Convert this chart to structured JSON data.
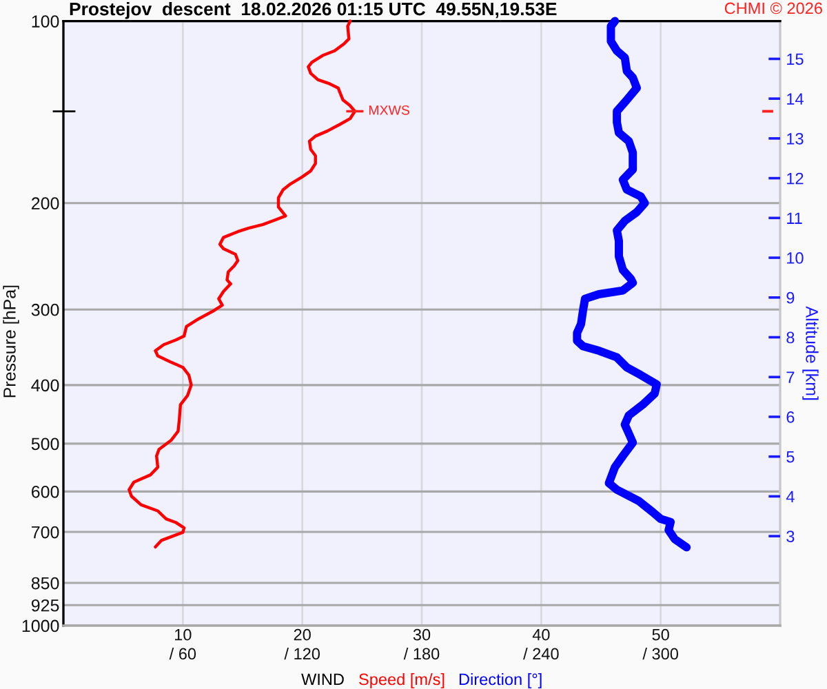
{
  "chart_data": {
    "type": "line",
    "orientation": "horizontal",
    "title": "Prostejov  descent  18.02.2026 01:15 UTC  49.55N,19.53E",
    "xlabel": "WIND",
    "ylabel": "Pressure [hPa]",
    "y2label": "Altitude [km]",
    "annotations": [
      {
        "text": "MXWS",
        "x": 24.4,
        "y": 141
      },
      "CHMI © 2026"
    ],
    "log": "y",
    "grid": true,
    "xlim": [
      0,
      60
    ],
    "xticks": [
      10,
      20,
      30,
      40,
      50
    ],
    "x2lim": [
      0,
      360
    ],
    "x2ticks": [
      {
        "value": 60,
        "label": "/ 60"
      },
      {
        "value": 120,
        "label": "/ 120"
      },
      {
        "value": 180,
        "label": "/ 180"
      },
      {
        "value": 240,
        "label": "/ 240"
      },
      {
        "value": 300,
        "label": "/ 300"
      }
    ],
    "ylim": [
      1000,
      100
    ],
    "yticks": [
      100,
      200,
      300,
      400,
      500,
      600,
      700,
      850,
      925,
      1000
    ],
    "y2lim": [
      0.75,
      15.95
    ],
    "y2ticks": [
      3,
      4,
      5,
      6,
      7,
      8,
      9,
      10,
      11,
      12,
      13,
      14,
      15
    ],
    "series": [
      {
        "name": "Speed [m/s]",
        "color": "#ff0000",
        "x": [
          100,
          102,
          107,
          109,
          112,
          114,
          117,
          119,
          122,
          125,
          127,
          129,
          135,
          138,
          141,
          145,
          148,
          152,
          155,
          158,
          163,
          167,
          172,
          177,
          181,
          186,
          190,
          196,
          203,
          210,
          213,
          217,
          220,
          223,
          228,
          234,
          238,
          243,
          249,
          254,
          260,
          268,
          272,
          280,
          288,
          295,
          302,
          311,
          320,
          332,
          337,
          343,
          351,
          358,
          365,
          374,
          385,
          400,
          416,
          431,
          457,
          477,
          494,
          511,
          524,
          547,
          563,
          579,
          596,
          611,
          631,
          646,
          666,
          675,
          689,
          701,
          713,
          723,
          741
        ],
        "values": [
          24.0,
          23.8,
          23.9,
          23.5,
          22.7,
          21.7,
          20.8,
          20.5,
          20.7,
          21.3,
          22.3,
          23.0,
          23.4,
          24.0,
          24.4,
          24.0,
          23.2,
          22.1,
          21.1,
          20.6,
          20.7,
          21.1,
          21.1,
          20.7,
          20.0,
          19.0,
          18.4,
          18.0,
          18.0,
          18.6,
          17.8,
          16.7,
          15.5,
          14.6,
          13.4,
          13.1,
          13.4,
          14.4,
          14.6,
          14.3,
          13.8,
          13.7,
          14.0,
          13.4,
          13.0,
          13.3,
          12.5,
          11.3,
          10.3,
          10.1,
          9.4,
          8.4,
          7.7,
          7.9,
          8.8,
          10.0,
          10.5,
          10.7,
          10.4,
          9.8,
          9.7,
          9.6,
          9.0,
          8.0,
          7.8,
          7.9,
          7.3,
          5.9,
          5.5,
          5.7,
          6.5,
          7.9,
          8.6,
          9.4,
          10.1,
          10.0,
          9.0,
          8.2,
          7.7
        ]
      },
      {
        "name": "Direction [°]",
        "color": "#0000ff",
        "axis": "x2",
        "x": [
          100,
          102,
          108,
          112,
          115,
          121,
          124,
          129,
          135,
          141,
          147,
          153,
          158,
          165,
          176,
          183,
          190,
          195,
          200,
          207,
          214,
          222,
          231,
          245,
          258,
          267,
          271,
          279,
          283,
          288,
          301,
          317,
          328,
          338,
          345,
          351,
          360,
          374,
          385,
          399,
          413,
          431,
          449,
          465,
          481,
          498,
          524,
          547,
          581,
          596,
          622,
          649,
          666,
          674,
          695,
          719,
          742
        ],
        "values": [
          277,
          275,
          275,
          278,
          282,
          283,
          286,
          288,
          283,
          278,
          278,
          279,
          284,
          286,
          286,
          281,
          283,
          290,
          292,
          288,
          282,
          278,
          279,
          279,
          281,
          285,
          286,
          281,
          269,
          262,
          261,
          260,
          258,
          258,
          261,
          269,
          278,
          283,
          290,
          298,
          297,
          291,
          284,
          282,
          284,
          286,
          281,
          277,
          274,
          278,
          289,
          296,
          300,
          305,
          304,
          307,
          313
        ]
      }
    ]
  }
}
